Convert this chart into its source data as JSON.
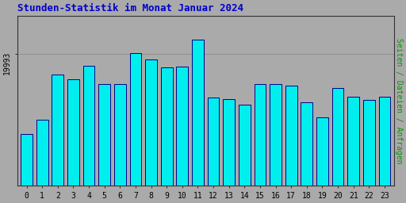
{
  "title": "Stunden-Statistik im Monat Januar 2024",
  "title_color": "#0000CC",
  "ylabel": "Seiten / Dateien / Anfragen",
  "ylabel_color": "#009900",
  "background_color": "#AAAAAA",
  "plot_bg_color": "#AAAAAA",
  "bar_face_color": "#00EEEE",
  "bar_edge_color": "#000088",
  "bar_left_highlight": "#006666",
  "ytick_label": "19993",
  "ytick_value": 19993,
  "ymin": 18600,
  "ymax": 20400,
  "font_family": "monospace",
  "bar_values": [
    19150,
    19300,
    19780,
    19730,
    19870,
    19680,
    19680,
    20000,
    19940,
    19850,
    19860,
    20150,
    19530,
    19520,
    19460,
    19680,
    19680,
    19660,
    19480,
    19320,
    19630,
    19540,
    19510,
    19540
  ],
  "xlabels": [
    "0",
    "1",
    "2",
    "3",
    "4",
    "5",
    "6",
    "7",
    "8",
    "9",
    "10",
    "11",
    "12",
    "13",
    "14",
    "15",
    "16",
    "17",
    "18",
    "19",
    "20",
    "21",
    "22",
    "23"
  ]
}
